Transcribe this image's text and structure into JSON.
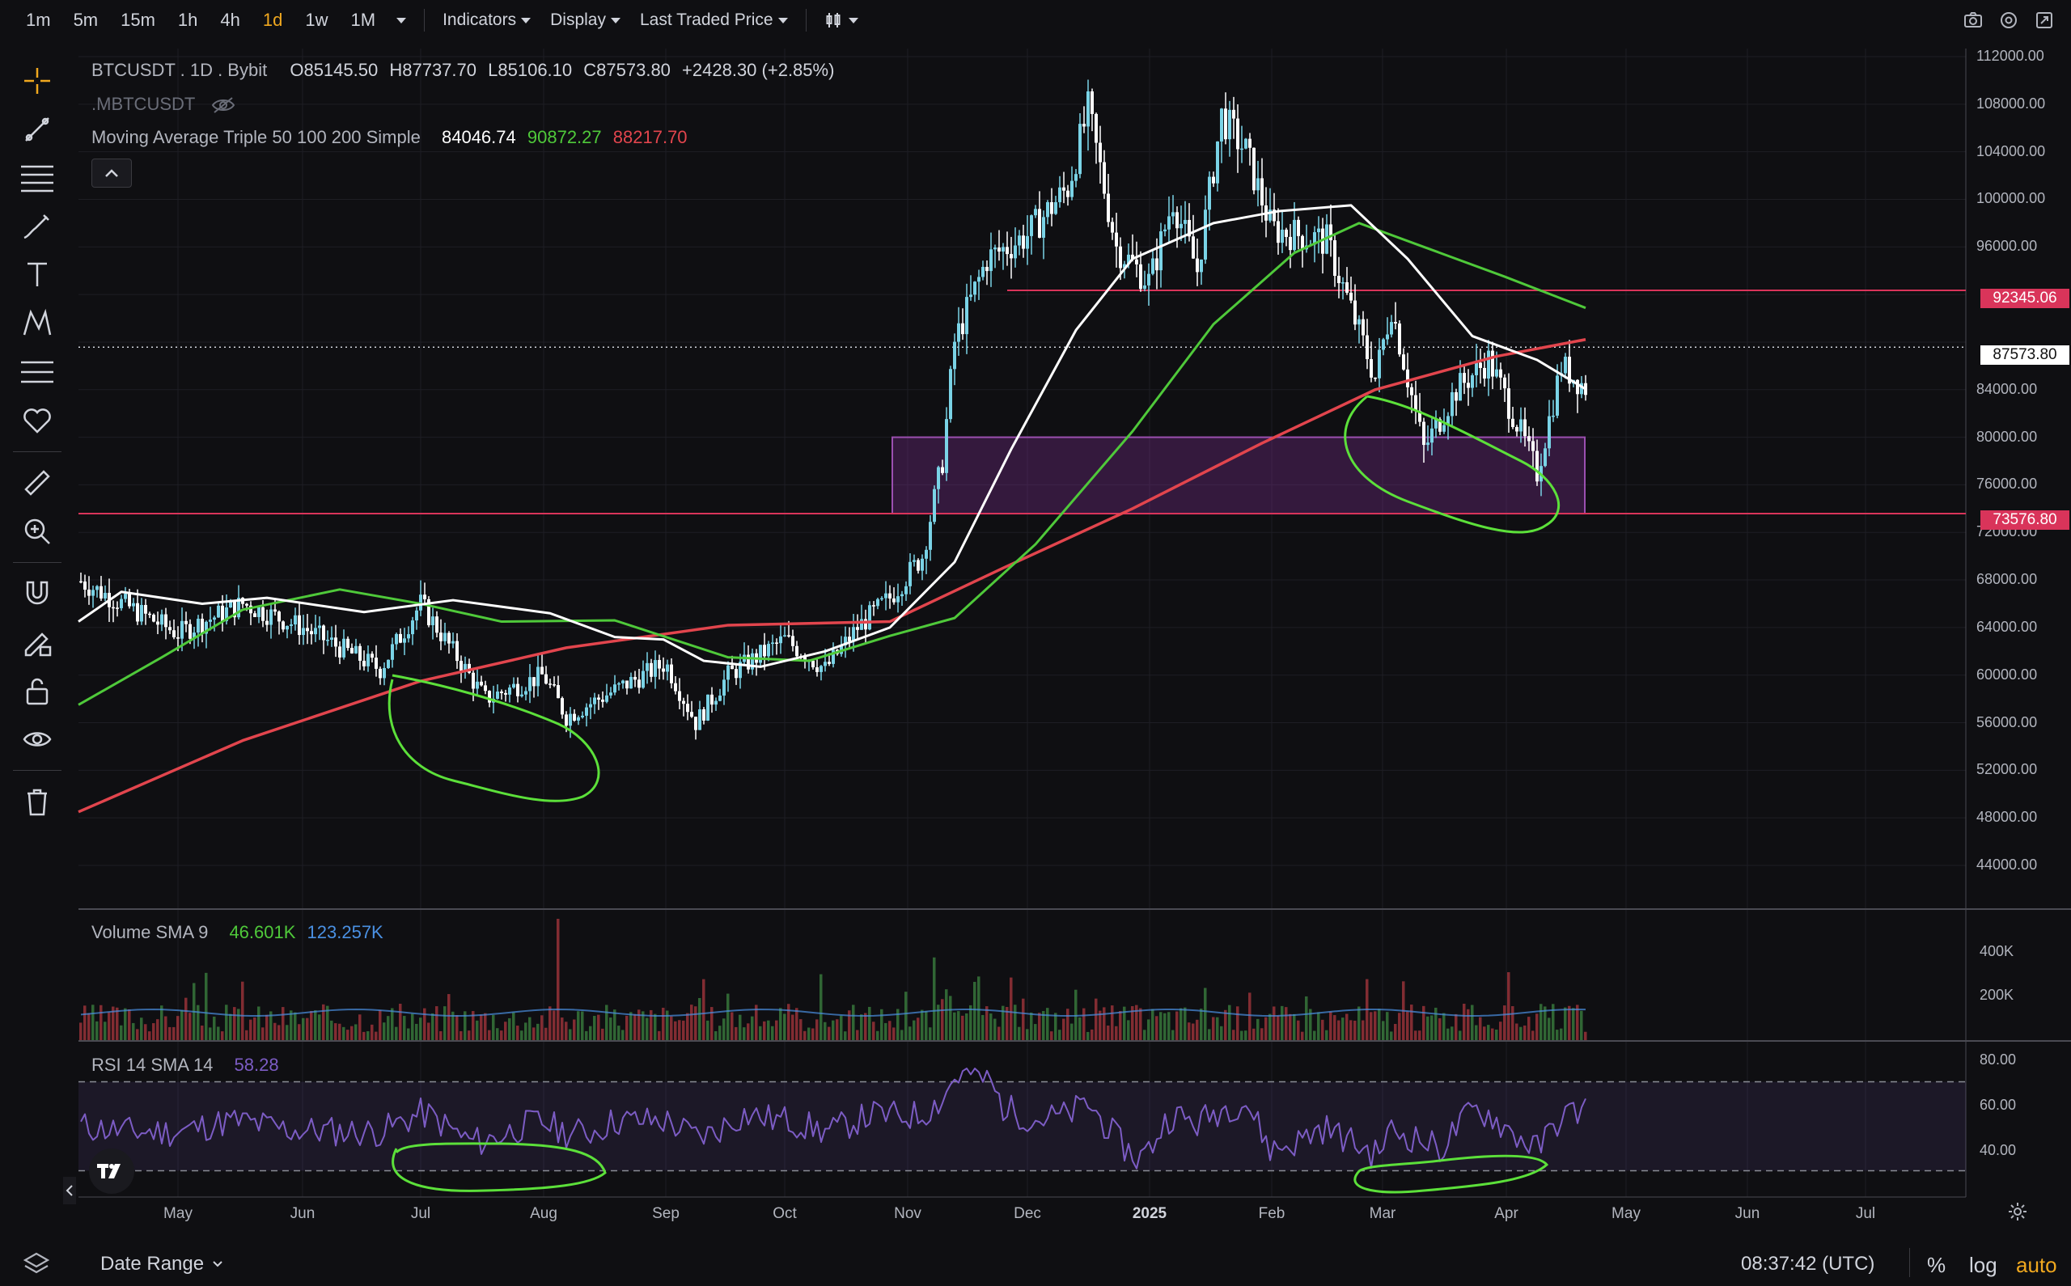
{
  "toolbar": {
    "timeframes": [
      "1m",
      "5m",
      "15m",
      "1h",
      "4h",
      "1d",
      "1w",
      "1M"
    ],
    "active_timeframe": "1d",
    "indicators_label": "Indicators",
    "display_label": "Display",
    "price_source_label": "Last Traded Price"
  },
  "legend": {
    "symbol": "BTCUSDT . 1D . Bybit",
    "open_label": "O",
    "open": "85145.50",
    "high_label": "H",
    "high": "87737.70",
    "low_label": "L",
    "low": "85106.10",
    "close_label": "C",
    "close": "87573.80",
    "change": "+2428.30 (+2.85%)",
    "secondary_symbol": ".MBTCUSDT",
    "ma_name": "Moving Average Triple 50 100 200 Simple",
    "ma_values": [
      "84046.74",
      "90872.27",
      "88217.70"
    ],
    "ma_colors": [
      "#ffffff",
      "#4fc93a",
      "#e2454d"
    ]
  },
  "price_axis": {
    "labels": [
      "112000.00",
      "108000.00",
      "104000.00",
      "100000.00",
      "96000.00",
      "84000.00",
      "80000.00",
      "76000.00",
      "72000.00",
      "68000.00",
      "64000.00",
      "60000.00",
      "56000.00",
      "52000.00",
      "48000.00",
      "44000.00"
    ],
    "badges": [
      {
        "text": "92345.06",
        "bg": "#d9345a",
        "fg": "#ffffff"
      },
      {
        "text": "87573.80",
        "bg": "#ffffff",
        "fg": "#111111"
      },
      {
        "text": "73576.80",
        "bg": "#d9345a",
        "fg": "#ffffff"
      }
    ]
  },
  "volume": {
    "title": "Volume SMA 9",
    "value1": "46.601K",
    "value2": "123.257K",
    "axis": [
      "400K",
      "200K"
    ]
  },
  "rsi": {
    "title": "RSI 14 SMA 14",
    "value": "58.28",
    "axis": [
      "80.00",
      "60.00",
      "40.00"
    ]
  },
  "time_axis": [
    "May",
    "Jun",
    "Jul",
    "Aug",
    "Sep",
    "Oct",
    "Nov",
    "Dec",
    "2025",
    "Feb",
    "Mar",
    "Apr",
    "May",
    "Jun",
    "Jul"
  ],
  "footer": {
    "date_range": "Date Range",
    "clock": "08:37:42 (UTC)",
    "percent": "%",
    "log": "log",
    "auto": "auto"
  },
  "colors": {
    "bg": "#0f0f12",
    "up": "#7ad3e6",
    "down": "#ffffff",
    "ma50": "#ffffff",
    "ma100": "#4fc93a",
    "ma200": "#e2454d",
    "rsi": "#7c5cc4",
    "box": "#7b2f8f",
    "accent": "#f0a81f"
  },
  "chart_data": {
    "type": "candlestick",
    "symbol": "BTCUSDT",
    "interval": "1D",
    "months": [
      "May",
      "Jun",
      "Jul",
      "Aug",
      "Sep",
      "Oct",
      "Nov",
      "Dec",
      "2025",
      "Feb",
      "Mar",
      "Apr"
    ],
    "approx_monthly_close": [
      67500,
      62700,
      66000,
      59000,
      63500,
      70000,
      96500,
      93500,
      102500,
      84500,
      82500,
      87573.8
    ],
    "horizontal_levels": [
      92345.06,
      73576.8
    ],
    "zone": [
      73576.8,
      80000
    ],
    "ylim": [
      42000,
      114000
    ]
  }
}
